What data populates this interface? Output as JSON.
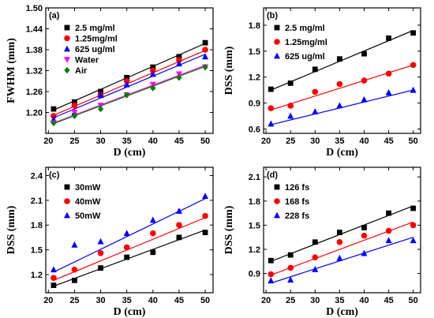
{
  "chart_data": [
    {
      "type": "scatter",
      "panel_label": "(a)",
      "xlabel": "D (cm)",
      "ylabel": "FWHM (mm)",
      "xlim": [
        19.5,
        51.5
      ],
      "ylim": [
        1.14,
        1.5
      ],
      "xticks": [
        20,
        25,
        30,
        35,
        40,
        45,
        50
      ],
      "yticks": [
        1.2,
        1.26,
        1.32,
        1.38,
        1.44,
        1.5
      ],
      "ytick_labels": [
        "1.20",
        "1.26",
        "1.32",
        "1.38",
        "1.44",
        "1.50"
      ],
      "legend_position": "top-left",
      "x": [
        21,
        25,
        30,
        35,
        40,
        45,
        50
      ],
      "series": [
        {
          "name": "2.5 mg/ml",
          "marker": "square",
          "color": "#000000",
          "values": [
            1.21,
            1.23,
            1.26,
            1.3,
            1.33,
            1.36,
            1.4
          ],
          "fit": [
            1.207,
            1.398
          ]
        },
        {
          "name": "1.25mg/ml",
          "marker": "circle",
          "color": "#ff0000",
          "values": [
            1.19,
            1.22,
            1.25,
            1.29,
            1.32,
            1.35,
            1.38
          ],
          "fit": [
            1.192,
            1.378
          ]
        },
        {
          "name": "625 ug/ml",
          "marker": "triangle-up",
          "color": "#0000ff",
          "values": [
            1.18,
            1.2,
            1.25,
            1.28,
            1.31,
            1.34,
            1.36
          ],
          "fit": [
            1.185,
            1.367
          ]
        },
        {
          "name": "Water",
          "marker": "triangle-down",
          "color": "#ff00ff",
          "values": [
            1.17,
            1.2,
            1.22,
            1.25,
            1.28,
            1.31,
            1.33
          ],
          "fit": [
            1.17,
            1.335
          ]
        },
        {
          "name": "Air",
          "marker": "diamond",
          "color": "#008000",
          "values": [
            1.17,
            1.19,
            1.21,
            1.25,
            1.27,
            1.3,
            1.33
          ],
          "fit": [
            1.168,
            1.332
          ]
        }
      ]
    },
    {
      "type": "scatter",
      "panel_label": "(b)",
      "xlabel": "D (cm)",
      "ylabel": "DSS (mm)",
      "xlim": [
        19.5,
        51.5
      ],
      "ylim": [
        0.55,
        2.0
      ],
      "xticks": [
        20,
        25,
        30,
        35,
        40,
        45,
        50
      ],
      "yticks": [
        0.6,
        0.9,
        1.2,
        1.5,
        1.8
      ],
      "ytick_labels": [
        "0.6",
        "0.9",
        "1.2",
        "1.5",
        "1.8"
      ],
      "legend_position": "top-left",
      "x": [
        21,
        25,
        30,
        35,
        40,
        45,
        50
      ],
      "series": [
        {
          "name": "2.5  mg/ml",
          "marker": "square",
          "color": "#000000",
          "values": [
            1.06,
            1.13,
            1.29,
            1.41,
            1.47,
            1.65,
            1.71
          ],
          "fit": [
            1.05,
            1.74
          ]
        },
        {
          "name": "1.25mg/ml",
          "marker": "circle",
          "color": "#ff0000",
          "values": [
            0.84,
            0.87,
            1.03,
            1.12,
            1.16,
            1.24,
            1.34
          ],
          "fit": [
            0.82,
            1.34
          ]
        },
        {
          "name": "625 ug/ml",
          "marker": "triangle-up",
          "color": "#0000ff",
          "values": [
            0.66,
            0.75,
            0.8,
            0.87,
            0.94,
            1.02,
            1.05
          ],
          "fit": [
            0.65,
            1.05
          ]
        }
      ]
    },
    {
      "type": "scatter",
      "panel_label": "(c)",
      "xlabel": "D (cm)",
      "ylabel": "DSS (mm)",
      "xlim": [
        19.5,
        51.5
      ],
      "ylim": [
        0.98,
        2.5
      ],
      "xticks": [
        20,
        25,
        30,
        35,
        40,
        45,
        50
      ],
      "yticks": [
        1.2,
        1.5,
        1.8,
        2.1,
        2.4
      ],
      "ytick_labels": [
        "1.2",
        "1.5",
        "1.8",
        "2.1",
        "2.4"
      ],
      "legend_position": "top-left",
      "x": [
        21,
        25,
        30,
        35,
        40,
        45,
        50
      ],
      "series": [
        {
          "name": "30mW",
          "marker": "square",
          "color": "#000000",
          "values": [
            1.07,
            1.13,
            1.28,
            1.41,
            1.47,
            1.65,
            1.71
          ],
          "fit": [
            1.06,
            1.74
          ]
        },
        {
          "name": "40mW",
          "marker": "circle",
          "color": "#ff0000",
          "values": [
            1.16,
            1.26,
            1.46,
            1.53,
            1.7,
            1.8,
            1.91
          ],
          "fit": [
            1.13,
            1.89
          ]
        },
        {
          "name": "50mW",
          "marker": "triangle-up",
          "color": "#0000ff",
          "values": [
            1.26,
            1.56,
            1.6,
            1.7,
            1.86,
            1.97,
            2.15
          ],
          "fit": [
            1.23,
            2.12
          ]
        }
      ]
    },
    {
      "type": "scatter",
      "panel_label": "(d)",
      "xlabel": "D (cm)",
      "ylabel": "DSS (mm)",
      "xlim": [
        19.5,
        51.5
      ],
      "ylim": [
        0.66,
        2.22
      ],
      "xticks": [
        20,
        25,
        30,
        35,
        40,
        45,
        50
      ],
      "yticks": [
        0.9,
        1.2,
        1.5,
        1.8,
        2.1
      ],
      "ytick_labels": [
        "0.9",
        "1.2",
        "1.5",
        "1.8",
        "2.1"
      ],
      "legend_position": "top-left",
      "x": [
        21,
        25,
        30,
        35,
        40,
        45,
        50
      ],
      "series": [
        {
          "name": "126 fs",
          "marker": "square",
          "color": "#000000",
          "values": [
            1.06,
            1.13,
            1.29,
            1.41,
            1.47,
            1.65,
            1.71
          ],
          "fit": [
            1.05,
            1.74
          ]
        },
        {
          "name": "168 fs",
          "marker": "circle",
          "color": "#ff0000",
          "values": [
            0.89,
            0.97,
            1.1,
            1.29,
            1.37,
            1.43,
            1.5
          ],
          "fit": [
            0.88,
            1.54
          ]
        },
        {
          "name": "228 fs",
          "marker": "triangle-up",
          "color": "#0000ff",
          "values": [
            0.81,
            0.82,
            0.95,
            1.09,
            1.15,
            1.31,
            1.31
          ],
          "fit": [
            0.78,
            1.35
          ]
        }
      ]
    }
  ]
}
